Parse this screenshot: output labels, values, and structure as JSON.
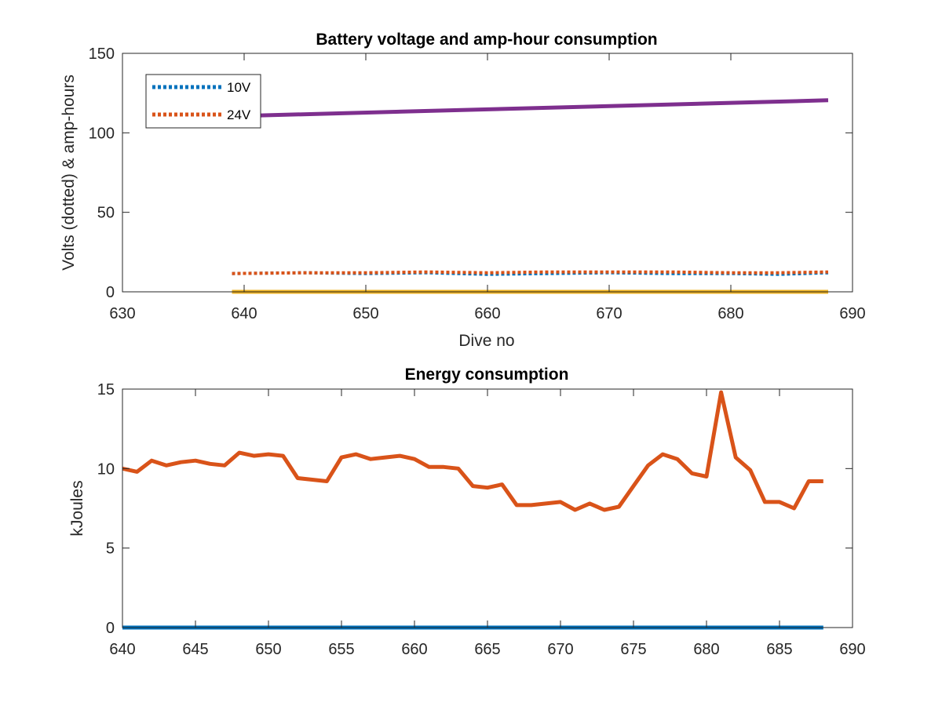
{
  "chart_data": [
    {
      "type": "line",
      "title": "Battery voltage and amp-hour consumption",
      "xlabel": "Dive no",
      "ylabel": "Volts (dotted) & amp-hours",
      "xlim": [
        630,
        690
      ],
      "ylim": [
        0,
        150
      ],
      "xticks": [
        630,
        640,
        650,
        660,
        670,
        680,
        690
      ],
      "yticks": [
        0,
        50,
        100,
        150
      ],
      "grid": false,
      "legend": {
        "placement": "top-left",
        "entries": [
          "10V",
          "24V"
        ]
      },
      "series": [
        {
          "name": "10V",
          "style": "dotted",
          "color": "#0072BD",
          "x": [
            639,
            645,
            650,
            655,
            660,
            665,
            670,
            675,
            680,
            684,
            688
          ],
          "y": [
            11.5,
            12,
            11.5,
            12,
            11,
            11.5,
            12,
            11.5,
            11.5,
            11,
            12
          ]
        },
        {
          "name": "24V",
          "style": "dotted",
          "color": "#D95319",
          "x": [
            639,
            645,
            650,
            655,
            660,
            665,
            670,
            675,
            680,
            684,
            688
          ],
          "y": [
            11.5,
            12,
            12,
            12.5,
            12,
            12.5,
            12.5,
            12.5,
            12,
            12,
            12.5
          ]
        },
        {
          "style": "solid",
          "color": "#EDB120",
          "x": [
            639,
            688
          ],
          "y": [
            0,
            0
          ]
        },
        {
          "style": "solid",
          "color": "#7E2F8E",
          "x": [
            639,
            688
          ],
          "y": [
            110.5,
            120.5
          ]
        }
      ]
    },
    {
      "type": "line",
      "title": "Energy consumption",
      "xlabel": "",
      "ylabel": "kJoules",
      "xlim": [
        640,
        690
      ],
      "ylim": [
        0,
        15
      ],
      "xticks": [
        640,
        645,
        650,
        655,
        660,
        665,
        670,
        675,
        680,
        685,
        690
      ],
      "yticks": [
        0,
        5,
        10,
        15
      ],
      "grid": false,
      "series": [
        {
          "style": "solid",
          "color": "#0072BD",
          "x": [
            640,
            688
          ],
          "y": [
            0,
            0
          ]
        },
        {
          "style": "solid",
          "color": "#D95319",
          "x": [
            640,
            641,
            642,
            643,
            644,
            645,
            646,
            647,
            648,
            649,
            650,
            651,
            652,
            653,
            654,
            655,
            656,
            657,
            658,
            659,
            660,
            661,
            662,
            663,
            664,
            665,
            666,
            667,
            668,
            669,
            670,
            671,
            672,
            673,
            674,
            675,
            676,
            677,
            678,
            679,
            680,
            681,
            682,
            683,
            684,
            685,
            686,
            687,
            688
          ],
          "y": [
            10.0,
            9.8,
            10.5,
            10.2,
            10.4,
            10.5,
            10.3,
            10.2,
            11.0,
            10.8,
            10.9,
            10.8,
            9.4,
            9.3,
            9.2,
            10.7,
            10.9,
            10.6,
            10.7,
            10.8,
            10.6,
            10.1,
            10.1,
            10.0,
            8.9,
            8.8,
            9.0,
            7.7,
            7.7,
            7.8,
            7.9,
            7.4,
            7.8,
            7.4,
            7.6,
            8.9,
            10.2,
            10.9,
            10.6,
            9.7,
            9.5,
            14.8,
            10.7,
            9.9,
            7.9,
            7.9,
            7.5,
            9.2,
            9.2
          ]
        }
      ]
    }
  ]
}
